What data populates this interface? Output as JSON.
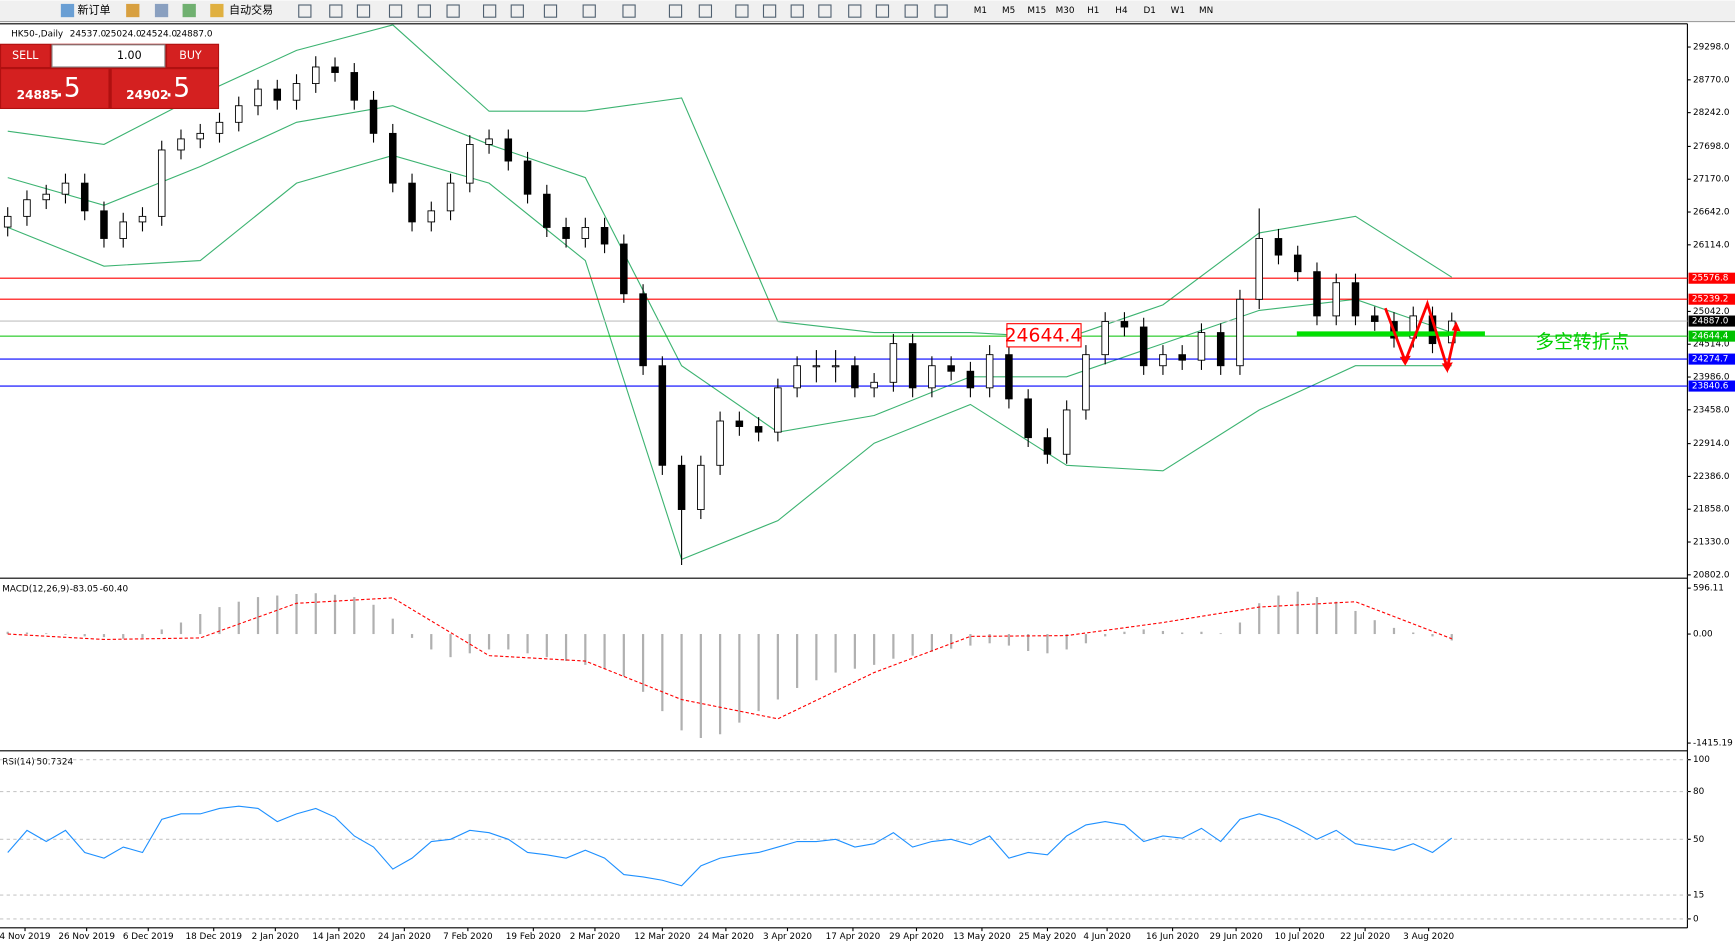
{
  "toolbar": {
    "new_order": "新订单",
    "auto_trading": "自动交易",
    "timeframes": [
      "M1",
      "M5",
      "M15",
      "M30",
      "H1",
      "H4",
      "D1",
      "W1",
      "MN"
    ]
  },
  "trade_panel": {
    "sell": "SELL",
    "lots": "1.00",
    "buy": "BUY",
    "bid_main": "24885",
    "bid_frac": ".5",
    "ask_main": "24902",
    "ask_frac": ".5"
  },
  "chart_data": [
    {
      "type": "candlestick",
      "title": "HK50-,Daily",
      "ohlc_labels": [
        "24537.0",
        "25024.0",
        "24524.0",
        "24887.0"
      ],
      "xlim": [
        -0.4,
        87.24
      ],
      "ylim": [
        20766,
        29654
      ],
      "yticks": [
        {
          "value": 29298,
          "label": "29298.0"
        },
        {
          "value": 28770,
          "label": "28770.0"
        },
        {
          "value": 28242,
          "label": "28242.0"
        },
        {
          "value": 27698,
          "label": "27698.0"
        },
        {
          "value": 27170,
          "label": "27170.0"
        },
        {
          "value": 26642,
          "label": "26642.0"
        },
        {
          "value": 26114,
          "label": "26114.0"
        },
        {
          "value": 25042,
          "label": "25042.0"
        },
        {
          "value": 24514,
          "label": "24514.0"
        },
        {
          "value": 23986,
          "label": "23986.0"
        },
        {
          "value": 23458,
          "label": "23458.0"
        },
        {
          "value": 22914,
          "label": "22914.0"
        },
        {
          "value": 22386,
          "label": "22386.0"
        },
        {
          "value": 21858,
          "label": "21858.0"
        },
        {
          "value": 21330,
          "label": "21330.0"
        },
        {
          "value": 20802,
          "label": "20802.0"
        }
      ],
      "candles": {
        "open": [
          26400,
          26572,
          26840,
          26929,
          27107,
          26661,
          26216,
          26483,
          26572,
          27641,
          27819,
          27908,
          28086,
          28353,
          28621,
          28442,
          28710,
          28977,
          28888,
          28442,
          27908,
          27107,
          26483,
          26661,
          27107,
          27730,
          27819,
          27463,
          26929,
          26394,
          26216,
          26394,
          26127,
          25326,
          24168,
          22565,
          21853,
          22565,
          23278,
          23189,
          23099,
          23812,
          24168,
          24168,
          24168,
          23812,
          23901,
          24524,
          23812,
          24168,
          24079,
          23812,
          24346,
          23634,
          23010,
          22743,
          23456,
          24346,
          24880,
          24791,
          24168,
          24346,
          24257,
          24702,
          24168,
          25237,
          26216,
          25949,
          25682,
          24970,
          25504,
          24970,
          24880,
          24613,
          24970,
          24537
        ],
        "high": [
          26720,
          26990,
          27080,
          27260,
          27260,
          26810,
          26630,
          26720,
          27790,
          27970,
          28060,
          28240,
          28500,
          28770,
          28770,
          28860,
          29150,
          29130,
          29040,
          28590,
          28060,
          27260,
          26810,
          27260,
          27880,
          27970,
          27970,
          27610,
          27080,
          26550,
          26550,
          26550,
          26280,
          25480,
          24320,
          22720,
          22720,
          23430,
          23430,
          23340,
          23960,
          24320,
          24420,
          24420,
          24320,
          24050,
          24680,
          24680,
          24320,
          24320,
          24230,
          24500,
          24500,
          23790,
          23160,
          23610,
          24500,
          25030,
          25030,
          24940,
          24500,
          24500,
          24850,
          24850,
          25390,
          26700,
          26370,
          26100,
          25830,
          25650,
          25650,
          25120,
          25030,
          25120,
          25120,
          25024
        ],
        "low": [
          26250,
          26420,
          26690,
          26780,
          26510,
          26070,
          26070,
          26330,
          26420,
          27490,
          27670,
          27760,
          27940,
          28200,
          28290,
          28290,
          28560,
          28740,
          28290,
          27760,
          26960,
          26330,
          26330,
          26510,
          26960,
          27580,
          27310,
          26780,
          26240,
          26070,
          26070,
          25980,
          25180,
          24020,
          22410,
          20960,
          21700,
          22410,
          23040,
          22950,
          22950,
          23660,
          23900,
          23900,
          23660,
          23660,
          23750,
          23660,
          23660,
          23930,
          23660,
          23660,
          23480,
          22860,
          22590,
          22590,
          23300,
          24190,
          24640,
          24020,
          24020,
          24100,
          24100,
          24020,
          24020,
          25080,
          25800,
          25530,
          24820,
          24820,
          24820,
          24730,
          24460,
          24460,
          24370,
          24524
        ],
        "close": [
          26572,
          26840,
          26929,
          27107,
          26661,
          26216,
          26483,
          26572,
          27641,
          27819,
          27908,
          28086,
          28353,
          28621,
          28442,
          28710,
          28977,
          28888,
          28442,
          27908,
          27107,
          26483,
          26661,
          27107,
          27730,
          27819,
          27463,
          26929,
          26394,
          26216,
          26394,
          26127,
          25326,
          24168,
          22565,
          21853,
          22565,
          23278,
          23189,
          23099,
          23812,
          24168,
          24168,
          24168,
          23812,
          23901,
          24524,
          23812,
          24168,
          24079,
          23812,
          24346,
          23634,
          23010,
          22743,
          23456,
          24346,
          24880,
          24791,
          24168,
          24346,
          24257,
          24702,
          24168,
          25237,
          26216,
          25949,
          25682,
          24970,
          25504,
          24970,
          24880,
          24613,
          24970,
          24524,
          24887
        ]
      },
      "series": [
        {
          "color": "#3cb371",
          "x": [
            0,
            5,
            10,
            15,
            20,
            25,
            30,
            35,
            40,
            45,
            50,
            55,
            60,
            65,
            70,
            75
          ],
          "values": [
            27944,
            27730,
            28532,
            29244,
            29654,
            28264,
            28264,
            28478,
            24880,
            24702,
            24702,
            24613,
            25148,
            26305,
            26572,
            25593
          ]
        },
        {
          "color": "#3cb371",
          "x": [
            0,
            5,
            10,
            15,
            20,
            25,
            30,
            35,
            40,
            45,
            50,
            55,
            60,
            65,
            70,
            75
          ],
          "values": [
            27196,
            26751,
            27374,
            28086,
            28353,
            27730,
            27196,
            24168,
            23099,
            23367,
            23990,
            23990,
            24524,
            25059,
            25237,
            24702
          ]
        },
        {
          "color": "#3cb371",
          "x": [
            0,
            5,
            10,
            15,
            20,
            25,
            30,
            35,
            40,
            45,
            50,
            55,
            60,
            65,
            70,
            75
          ],
          "values": [
            26394,
            25771,
            25860,
            27107,
            27552,
            27107,
            25860,
            21051,
            21675,
            22921,
            23545,
            22565,
            22476,
            23456,
            24168,
            24168
          ]
        }
      ],
      "levels": [
        {
          "value": 25576.8,
          "color": "#ff0000"
        },
        {
          "value": 25239.2,
          "color": "#ff0000"
        },
        {
          "value": 24644.4,
          "color": "#00c000"
        },
        {
          "value": 24274.7,
          "color": "#0000ff"
        },
        {
          "value": 23840.6,
          "color": "#0000ff"
        }
      ],
      "current_price": {
        "value": 24887,
        "label": "24887.0"
      },
      "annotations": [
        "24644.4",
        "多空转折点"
      ]
    },
    {
      "type": "macd",
      "title": "MACD(12,26,9)",
      "header_values": [
        "-83.05",
        "-60.40"
      ],
      "xlim": [
        -0.4,
        87.24
      ],
      "ylim": [
        -1501,
        711
      ],
      "yticks": [
        596.11,
        {
          "value": 0,
          "label": "0.00"
        },
        -1415.19
      ],
      "series": [
        {
          "color": "#b0b0b0",
          "values": [
            30,
            20,
            10,
            -10,
            -30,
            -40,
            -60,
            -50,
            60,
            150,
            260,
            350,
            420,
            480,
            500,
            520,
            530,
            510,
            480,
            380,
            200,
            -50,
            -200,
            -300,
            -250,
            -200,
            -200,
            -250,
            -300,
            -350,
            -400,
            -450,
            -550,
            -750,
            -1000,
            -1250,
            -1350,
            -1300,
            -1150,
            -1000,
            -850,
            -700,
            -600,
            -500,
            -450,
            -400,
            -320,
            -280,
            -230,
            -190,
            -150,
            -120,
            -150,
            -220,
            -250,
            -200,
            -120,
            -30,
            30,
            60,
            40,
            20,
            30,
            10,
            150,
            400,
            500,
            550,
            480,
            420,
            300,
            180,
            80,
            20,
            -30,
            -83.05
          ]
        },
        {
          "color": "#ff0000",
          "x": [
            0,
            5,
            10,
            15,
            20,
            25,
            30,
            35,
            40,
            45,
            50,
            55,
            60,
            65,
            70,
            75
          ],
          "values": [
            0,
            -70,
            -50,
            400,
            470,
            -280,
            -350,
            -850,
            -1100,
            -500,
            -30,
            -20,
            150,
            350,
            420,
            -60.4
          ]
        }
      ]
    },
    {
      "type": "line",
      "title": "RSI(14)",
      "header_values": [
        "50.7324"
      ],
      "xlim": [
        -0.4,
        87.24
      ],
      "ylim": [
        -5.6,
        104.9
      ],
      "yticks": [
        100,
        80,
        50,
        15,
        0
      ],
      "color": "#1e90ff",
      "values": [
        41.7,
        55.6,
        48.6,
        55.6,
        41.7,
        38.2,
        45.1,
        41.7,
        62.5,
        66,
        66,
        69.4,
        70.8,
        69.4,
        61.1,
        66,
        69.4,
        63.9,
        52.1,
        45.1,
        31.3,
        38.2,
        48.6,
        50,
        55.6,
        54.2,
        50,
        41.7,
        40.3,
        38.2,
        43.1,
        38.2,
        27.8,
        26.4,
        24.3,
        20.8,
        33.3,
        38.2,
        40.3,
        41.7,
        45.1,
        48.6,
        48.6,
        50,
        45.1,
        47.2,
        54.2,
        45.1,
        48.6,
        50,
        46.5,
        52.1,
        38.2,
        41.7,
        40.3,
        52.1,
        59,
        61.1,
        59,
        48.6,
        52.1,
        50.7,
        56.9,
        48.6,
        62.5,
        66,
        62.5,
        56.9,
        50,
        55.6,
        47.2,
        45.1,
        43.1,
        47.2,
        41.7,
        50.7324
      ],
      "xticks": [
        {
          "value": 0.9,
          "label": "4 Nov 2019"
        },
        {
          "value": 4.1,
          "label": "26 Nov 2019"
        },
        {
          "value": 7.3,
          "label": "6 Dec 2019"
        },
        {
          "value": 10.7,
          "label": "18 Dec 2019"
        },
        {
          "value": 13.9,
          "label": "2 Jan 2020"
        },
        {
          "value": 17.2,
          "label": "14 Jan 2020"
        },
        {
          "value": 20.6,
          "label": "24 Jan 2020"
        },
        {
          "value": 23.9,
          "label": "7 Feb 2020"
        },
        {
          "value": 27.3,
          "label": "19 Feb 2020"
        },
        {
          "value": 30.5,
          "label": "2 Mar 2020"
        },
        {
          "value": 34,
          "label": "12 Mar 2020"
        },
        {
          "value": 37.3,
          "label": "24 Mar 2020"
        },
        {
          "value": 40.5,
          "label": "3 Apr 2020"
        },
        {
          "value": 43.9,
          "label": "17 Apr 2020"
        },
        {
          "value": 47.2,
          "label": "29 Apr 2020"
        },
        {
          "value": 50.6,
          "label": "13 May 2020"
        },
        {
          "value": 54,
          "label": "25 May 2020"
        },
        {
          "value": 57.1,
          "label": "4 Jun 2020"
        },
        {
          "value": 60.5,
          "label": "16 Jun 2020"
        },
        {
          "value": 63.8,
          "label": "29 Jun 2020"
        },
        {
          "value": 67.1,
          "label": "10 Jul 2020"
        },
        {
          "value": 70.5,
          "label": "22 Jul 2020"
        },
        {
          "value": 73.8,
          "label": "3 Aug 2020"
        }
      ]
    }
  ]
}
